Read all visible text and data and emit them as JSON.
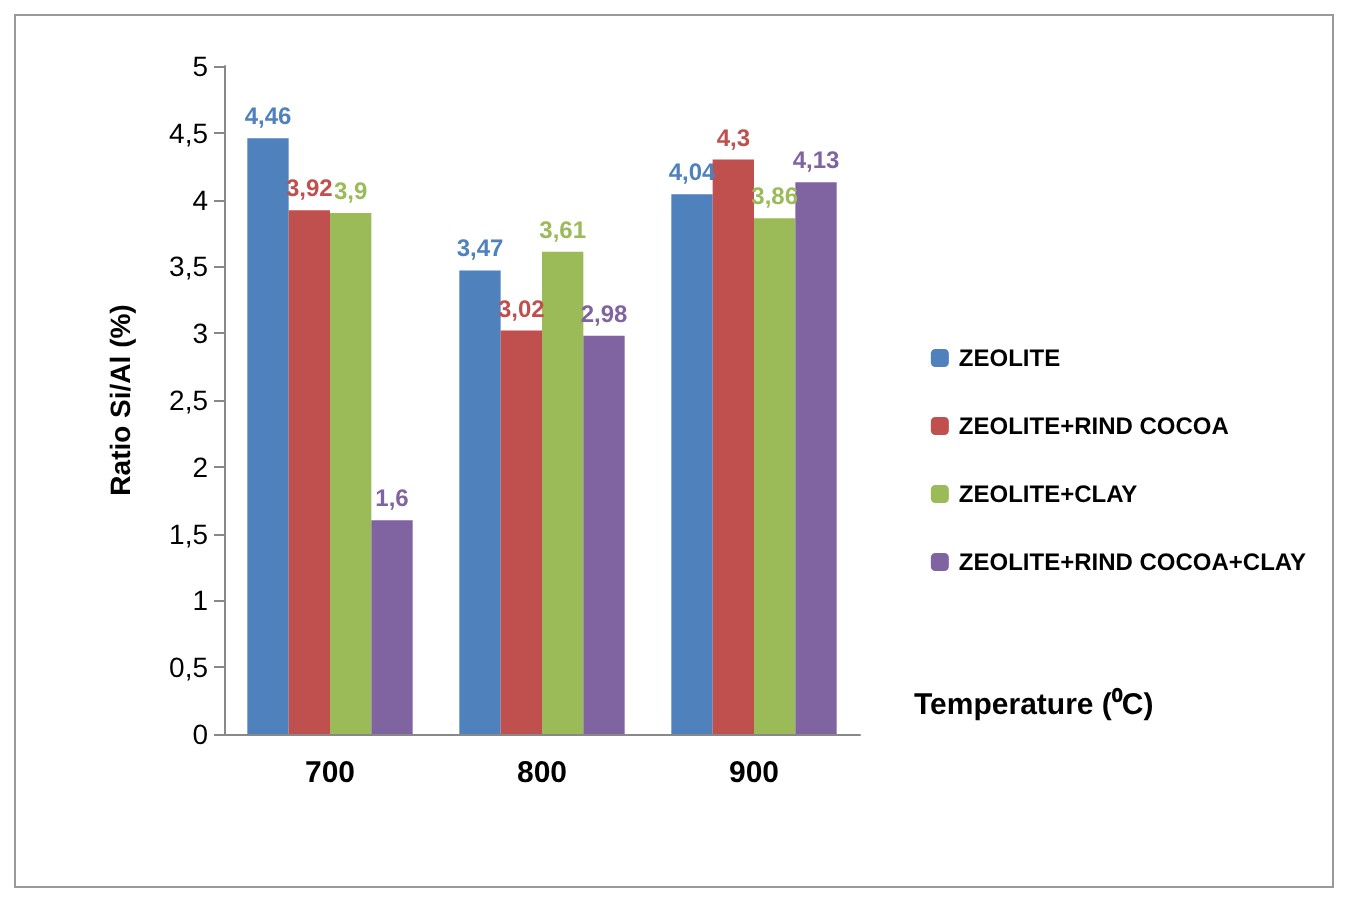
{
  "chart_data": {
    "type": "bar",
    "xlabel": "Temperature (⁰C)",
    "ylabel": "Ratio Si/Al (%)",
    "categories": [
      "700",
      "800",
      "900"
    ],
    "series": [
      {
        "name": "ZEOLITE",
        "color": "#4f81bd",
        "values": [
          4.46,
          3.47,
          4.04
        ],
        "value_labels": [
          "4,46",
          "3,47",
          "4,04"
        ]
      },
      {
        "name": "ZEOLITE+RIND COCOA",
        "color": "#c0504d",
        "values": [
          3.92,
          3.02,
          4.3
        ],
        "value_labels": [
          "3,92",
          "3,02",
          "4,3"
        ]
      },
      {
        "name": "ZEOLITE+CLAY",
        "color": "#9bbb59",
        "values": [
          3.9,
          3.61,
          3.86
        ],
        "value_labels": [
          "3,9",
          "3,61",
          "3,86"
        ]
      },
      {
        "name": "ZEOLITE+RIND COCOA+CLAY",
        "color": "#8064a2",
        "values": [
          1.6,
          2.98,
          4.13
        ],
        "value_labels": [
          "1,6",
          "2,98",
          "4,13"
        ]
      }
    ],
    "ylim": [
      0,
      5
    ],
    "yticks": [
      0,
      {
        "value": 0.5,
        "label": "0,5"
      },
      1,
      {
        "value": 1.5,
        "label": "1,5"
      },
      2,
      {
        "value": 2.5,
        "label": "2,5"
      },
      3,
      {
        "value": 3.5,
        "label": "3,5"
      },
      4,
      {
        "value": 4.5,
        "label": "4,5"
      },
      5
    ],
    "grid": false,
    "legend": "right"
  }
}
